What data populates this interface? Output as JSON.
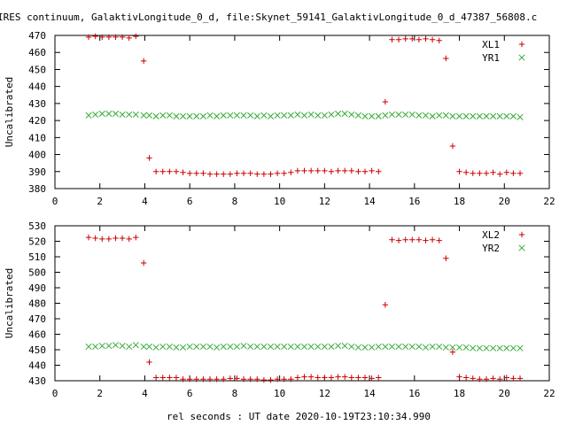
{
  "title": "IRES continuum, GalaktivLongitude_0_d, file:Skynet_59141_GalaktivLongitude_0_d_47387_56808.c",
  "xlabel": "rel seconds : UT date 2020-10-19T23:10:34.990",
  "colors": {
    "xl": "#cc0000",
    "yr": "#33aa33"
  },
  "chart_data": [
    {
      "type": "scatter",
      "title": "",
      "xlabel": "",
      "ylabel": "Uncalibrated",
      "xlim": [
        0,
        22
      ],
      "ylim": [
        380,
        470
      ],
      "xticks": [
        0,
        2,
        4,
        6,
        8,
        10,
        12,
        14,
        16,
        18,
        20,
        22
      ],
      "yticks": [
        380,
        390,
        400,
        410,
        420,
        430,
        440,
        450,
        460,
        470
      ],
      "legend_position": "top-right",
      "series": [
        {
          "name": "XL1",
          "marker": "plus",
          "color": "#cc0000",
          "x": [
            1.5,
            1.8,
            2.1,
            2.4,
            2.7,
            3.0,
            3.3,
            3.6,
            3.95,
            4.2,
            4.5,
            4.8,
            5.1,
            5.4,
            5.7,
            6.0,
            6.3,
            6.6,
            6.9,
            7.2,
            7.5,
            7.8,
            8.1,
            8.4,
            8.7,
            9.0,
            9.3,
            9.6,
            9.9,
            10.2,
            10.5,
            10.8,
            11.1,
            11.4,
            11.7,
            12.0,
            12.3,
            12.6,
            12.9,
            13.2,
            13.5,
            13.8,
            14.1,
            14.4,
            14.7,
            15.0,
            15.3,
            15.6,
            15.9,
            16.2,
            16.5,
            16.8,
            17.1,
            17.4,
            17.7,
            18.0,
            18.3,
            18.6,
            18.9,
            19.2,
            19.5,
            19.8,
            20.1,
            20.4,
            20.7
          ],
          "y": [
            469,
            469.5,
            469,
            469,
            469,
            469,
            468.5,
            469.5,
            455,
            398,
            390,
            390,
            390,
            390,
            389.5,
            389,
            389,
            389,
            388.5,
            388.5,
            388.5,
            388.5,
            389,
            389,
            389,
            388.5,
            388.5,
            388.5,
            389,
            389,
            389.5,
            390.5,
            390.5,
            390.5,
            390.5,
            390.5,
            390,
            390.5,
            390.5,
            390.5,
            390,
            390,
            390.5,
            390,
            431,
            467.5,
            467.5,
            468,
            468,
            467.5,
            468,
            467.5,
            467,
            456.5,
            405,
            390,
            389.5,
            389,
            389,
            389,
            389.5,
            388.5,
            389.5,
            389,
            389
          ]
        },
        {
          "name": "YR1",
          "marker": "cross",
          "color": "#33aa33",
          "x": [
            1.5,
            1.8,
            2.1,
            2.4,
            2.7,
            3.0,
            3.3,
            3.6,
            3.95,
            4.2,
            4.5,
            4.8,
            5.1,
            5.4,
            5.7,
            6.0,
            6.3,
            6.6,
            6.9,
            7.2,
            7.5,
            7.8,
            8.1,
            8.4,
            8.7,
            9.0,
            9.3,
            9.6,
            9.9,
            10.2,
            10.5,
            10.8,
            11.1,
            11.4,
            11.7,
            12.0,
            12.3,
            12.6,
            12.9,
            13.2,
            13.5,
            13.8,
            14.1,
            14.4,
            14.7,
            15.0,
            15.3,
            15.6,
            15.9,
            16.2,
            16.5,
            16.8,
            17.1,
            17.4,
            17.7,
            18.0,
            18.3,
            18.6,
            18.9,
            19.2,
            19.5,
            19.8,
            20.1,
            20.4,
            20.7
          ],
          "y": [
            423,
            423.5,
            424,
            424,
            424,
            423.5,
            423.5,
            423.5,
            423,
            423,
            422.5,
            423,
            423,
            422.5,
            422.5,
            422.5,
            422.5,
            422.5,
            423,
            422.5,
            423,
            423,
            423,
            423,
            423,
            422.5,
            423,
            422.5,
            423,
            423,
            423,
            423.5,
            423,
            423.5,
            423,
            423,
            423.5,
            424,
            424,
            423.5,
            423,
            422.5,
            422.5,
            422.5,
            423,
            423.5,
            423.5,
            423.5,
            423.5,
            423,
            423,
            422.5,
            423,
            423,
            422.5,
            422.5,
            422.5,
            422.5,
            422.5,
            422.5,
            422.5,
            422.5,
            422.5,
            422.5,
            422
          ]
        }
      ]
    },
    {
      "type": "scatter",
      "title": "",
      "xlabel": "rel seconds : UT date 2020-10-19T23:10:34.990",
      "ylabel": "Uncalibrated",
      "xlim": [
        0,
        22
      ],
      "ylim": [
        430,
        530
      ],
      "xticks": [
        0,
        2,
        4,
        6,
        8,
        10,
        12,
        14,
        16,
        18,
        20,
        22
      ],
      "yticks": [
        430,
        440,
        450,
        460,
        470,
        480,
        490,
        500,
        510,
        520,
        530
      ],
      "legend_position": "top-right",
      "series": [
        {
          "name": "XL2",
          "marker": "plus",
          "color": "#cc0000",
          "x": [
            1.5,
            1.8,
            2.1,
            2.4,
            2.7,
            3.0,
            3.3,
            3.6,
            3.95,
            4.2,
            4.5,
            4.8,
            5.1,
            5.4,
            5.7,
            6.0,
            6.3,
            6.6,
            6.9,
            7.2,
            7.5,
            7.8,
            8.1,
            8.4,
            8.7,
            9.0,
            9.3,
            9.6,
            9.9,
            10.2,
            10.5,
            10.8,
            11.1,
            11.4,
            11.7,
            12.0,
            12.3,
            12.6,
            12.9,
            13.2,
            13.5,
            13.8,
            14.1,
            14.4,
            14.7,
            15.0,
            15.3,
            15.6,
            15.9,
            16.2,
            16.5,
            16.8,
            17.1,
            17.4,
            17.7,
            18.0,
            18.3,
            18.6,
            18.9,
            19.2,
            19.5,
            19.8,
            20.1,
            20.4,
            20.7
          ],
          "y": [
            522.5,
            522,
            521.5,
            521.5,
            522,
            522,
            521.5,
            522.5,
            506,
            442,
            432,
            432,
            432,
            432,
            431,
            431,
            431,
            431,
            431,
            431,
            431,
            431.5,
            431.5,
            431,
            431,
            431,
            430.5,
            430.5,
            431,
            431,
            431,
            432,
            432.5,
            432.5,
            432,
            432,
            432,
            432.5,
            432.5,
            432,
            432,
            432,
            431.5,
            432,
            479,
            521,
            520.5,
            521,
            521,
            521,
            520.5,
            521,
            520.5,
            509,
            448.5,
            432.5,
            432,
            431.5,
            431,
            431,
            431.5,
            431,
            432,
            431.5,
            431.5
          ]
        },
        {
          "name": "YR2",
          "marker": "cross",
          "color": "#33aa33",
          "x": [
            1.5,
            1.8,
            2.1,
            2.4,
            2.7,
            3.0,
            3.3,
            3.6,
            3.95,
            4.2,
            4.5,
            4.8,
            5.1,
            5.4,
            5.7,
            6.0,
            6.3,
            6.6,
            6.9,
            7.2,
            7.5,
            7.8,
            8.1,
            8.4,
            8.7,
            9.0,
            9.3,
            9.6,
            9.9,
            10.2,
            10.5,
            10.8,
            11.1,
            11.4,
            11.7,
            12.0,
            12.3,
            12.6,
            12.9,
            13.2,
            13.5,
            13.8,
            14.1,
            14.4,
            14.7,
            15.0,
            15.3,
            15.6,
            15.9,
            16.2,
            16.5,
            16.8,
            17.1,
            17.4,
            17.7,
            18.0,
            18.3,
            18.6,
            18.9,
            19.2,
            19.5,
            19.8,
            20.1,
            20.4,
            20.7
          ],
          "y": [
            452,
            452,
            452.5,
            452.5,
            453,
            452.5,
            452,
            453,
            452,
            452,
            451.5,
            452,
            452,
            451.5,
            451.5,
            452,
            452,
            452,
            452,
            451.5,
            452,
            452,
            452,
            452.5,
            452,
            452,
            452,
            452,
            452,
            452,
            452,
            452,
            452,
            452,
            452,
            452,
            452,
            452.5,
            452.5,
            452,
            451.5,
            451.5,
            451.5,
            452,
            452,
            452,
            452,
            452,
            452,
            452,
            451.5,
            452,
            452,
            451.5,
            451.5,
            451.5,
            451.5,
            451,
            451,
            451,
            451,
            451,
            451,
            451,
            451
          ]
        }
      ]
    }
  ]
}
